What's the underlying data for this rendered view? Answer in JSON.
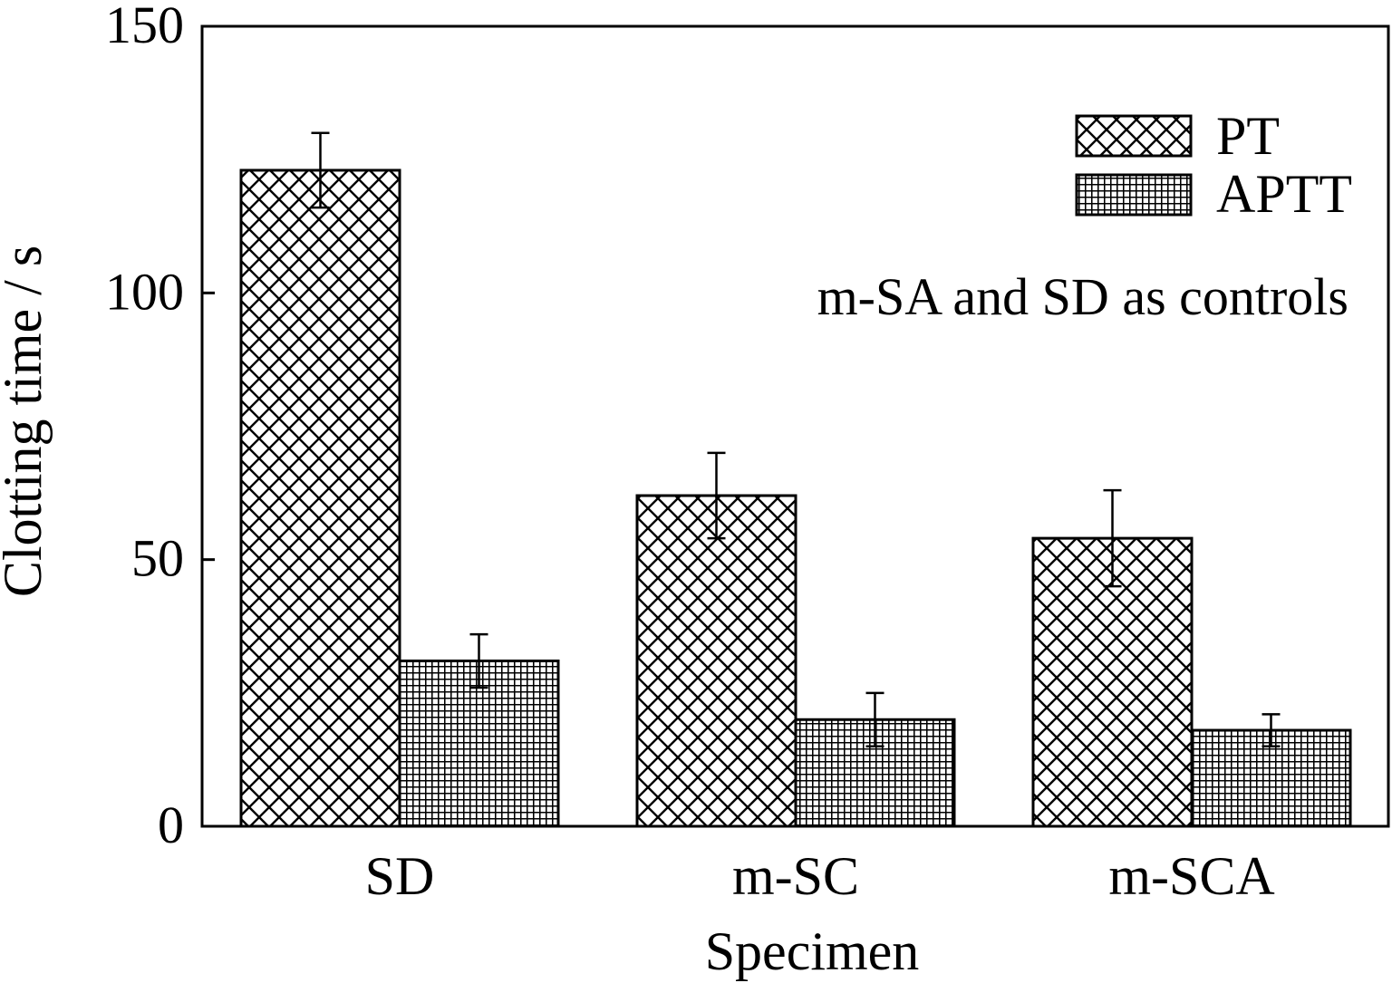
{
  "chart_data": {
    "type": "bar",
    "title": "",
    "xlabel": "Specimen",
    "ylabel": "Clotting time / s",
    "categories": [
      "SD",
      "m-SC",
      "m-SCA"
    ],
    "series": [
      {
        "name": "PT",
        "values": [
          123,
          62,
          54
        ],
        "errors": [
          7,
          8,
          9
        ],
        "pattern": "crosshatch"
      },
      {
        "name": "APTT",
        "values": [
          31,
          20,
          18
        ],
        "errors": [
          5,
          5,
          3
        ],
        "pattern": "grid"
      }
    ],
    "ylim": [
      0,
      150
    ],
    "yticks": [
      0,
      50,
      100,
      150
    ],
    "legend_position": "top-right",
    "annotation": "m-SA and SD as controls",
    "grid": false
  }
}
